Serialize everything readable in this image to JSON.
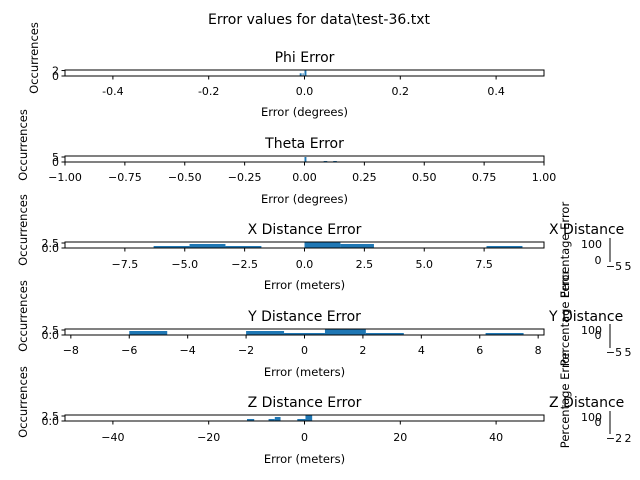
{
  "figure": {
    "suptitle": "Error values for data\\test-36.txt",
    "colors": {
      "bar": "#1f77b4",
      "frame": "#000000"
    }
  },
  "chart_data": [
    {
      "type": "bar",
      "title": "Phi Error",
      "xlabel": "Error (degrees)",
      "ylabel": "Occurrences",
      "xlim": [
        -0.5,
        0.5
      ],
      "ylim": [
        0,
        2.2
      ],
      "xticks": [
        "-0.4",
        "-0.2",
        "0.0",
        "0.2",
        "0.4"
      ],
      "xtick_values": [
        -0.4,
        -0.2,
        0.0,
        0.2,
        0.4
      ],
      "yticks": [
        "0",
        "2"
      ],
      "ytick_values": [
        0,
        2
      ],
      "bins": [
        {
          "x0": -0.01,
          "x1": -0.006,
          "value": 1
        },
        {
          "x0": -0.004,
          "x1": -0.002,
          "value": 1
        },
        {
          "x0": 0.0,
          "x1": 0.004,
          "value": 2
        }
      ],
      "grid": false
    },
    {
      "type": "bar",
      "title": "Theta Error",
      "xlabel": "Error (degrees)",
      "ylabel": "Occurrences",
      "xlim": [
        -1.0,
        1.0
      ],
      "ylim": [
        0,
        6
      ],
      "xticks": [
        "−1.00",
        "−0.75",
        "−0.50",
        "−0.25",
        "0.00",
        "0.25",
        "0.50",
        "0.75",
        "1.00"
      ],
      "xtick_values": [
        -1.0,
        -0.75,
        -0.5,
        -0.25,
        0.0,
        0.25,
        0.5,
        0.75,
        1.0
      ],
      "yticks": [
        "0",
        "5"
      ],
      "ytick_values": [
        0,
        5
      ],
      "bins": [
        {
          "x0": 0.0,
          "x1": 0.008,
          "value": 5
        },
        {
          "x0": 0.08,
          "x1": 0.095,
          "value": 1
        },
        {
          "x0": 0.12,
          "x1": 0.135,
          "value": 1
        }
      ],
      "grid": false
    },
    {
      "type": "bar",
      "title": "X Distance Error",
      "xlabel": "Error (meters)",
      "ylabel": "Occurrences",
      "xlim": [
        -10,
        10
      ],
      "ylim": [
        0,
        3
      ],
      "xticks": [
        "−7.5",
        "−5.0",
        "−2.5",
        "0.0",
        "2.5",
        "5.0",
        "7.5"
      ],
      "xtick_values": [
        -7.5,
        -5.0,
        -2.5,
        0.0,
        2.5,
        5.0,
        7.5
      ],
      "yticks": [
        "0.0",
        "2.5"
      ],
      "ytick_values": [
        0,
        2.5
      ],
      "bins": [
        {
          "x0": -6.3,
          "x1": -4.8,
          "value": 1
        },
        {
          "x0": -4.8,
          "x1": -3.3,
          "value": 2
        },
        {
          "x0": -3.3,
          "x1": -1.8,
          "value": 1
        },
        {
          "x0": 0.0,
          "x1": 1.5,
          "value": 3
        },
        {
          "x0": 1.5,
          "x1": 2.9,
          "value": 2
        },
        {
          "x0": 7.6,
          "x1": 9.1,
          "value": 1
        }
      ],
      "grid": false
    },
    {
      "type": "bar",
      "title": "Y Distance Error",
      "xlabel": "Error (meters)",
      "ylabel": "Occurrences",
      "xlim": [
        -8.2,
        8.2
      ],
      "ylim": [
        0,
        3
      ],
      "xticks": [
        "−8",
        "−6",
        "−4",
        "−2",
        "0",
        "2",
        "4",
        "6",
        "8"
      ],
      "xtick_values": [
        -8,
        -6,
        -4,
        -2,
        0,
        2,
        4,
        6,
        8
      ],
      "yticks": [
        "0.0",
        "2.5"
      ],
      "ytick_values": [
        0,
        2.5
      ],
      "bins": [
        {
          "x0": -6.0,
          "x1": -4.7,
          "value": 2
        },
        {
          "x0": -2.0,
          "x1": -0.7,
          "value": 2
        },
        {
          "x0": -0.7,
          "x1": 0.7,
          "value": 1
        },
        {
          "x0": 0.7,
          "x1": 2.1,
          "value": 3
        },
        {
          "x0": 2.1,
          "x1": 3.4,
          "value": 1
        },
        {
          "x0": 6.2,
          "x1": 7.5,
          "value": 1
        }
      ],
      "grid": false
    },
    {
      "type": "bar",
      "title": "Z Distance Error",
      "xlabel": "Error (meters)",
      "ylabel": "Occurrences",
      "xlim": [
        -50,
        50
      ],
      "ylim": [
        0,
        3
      ],
      "xticks": [
        "−40",
        "−20",
        "0",
        "20",
        "40"
      ],
      "xtick_values": [
        -40,
        -20,
        0,
        20,
        40
      ],
      "yticks": [
        "0.0",
        "2.5"
      ],
      "ytick_values": [
        0,
        2.5
      ],
      "bins": [
        {
          "x0": -12.0,
          "x1": -10.5,
          "value": 1
        },
        {
          "x0": -7.5,
          "x1": -6.2,
          "value": 1
        },
        {
          "x0": -6.2,
          "x1": -5.0,
          "value": 2
        },
        {
          "x0": -1.5,
          "x1": 0.2,
          "value": 1
        },
        {
          "x0": 0.2,
          "x1": 1.6,
          "value": 3
        }
      ],
      "grid": false
    }
  ],
  "side_panels": [
    {
      "title": "X Distance",
      "ylabel": "Percentage Error",
      "ytick": "100",
      "zero": "0",
      "xtick_a": "−5",
      "xtick_b": "5"
    },
    {
      "title": "Y Distance",
      "ylabel": "Percentage Error",
      "ytick": "100",
      "zero": "0",
      "xtick_a": "−5",
      "xtick_b": "5"
    },
    {
      "title": "Z Distance",
      "ylabel": "Percentage Error",
      "ytick": "100",
      "zero": "0",
      "xtick_a": "−2",
      "xtick_b": "2"
    }
  ]
}
